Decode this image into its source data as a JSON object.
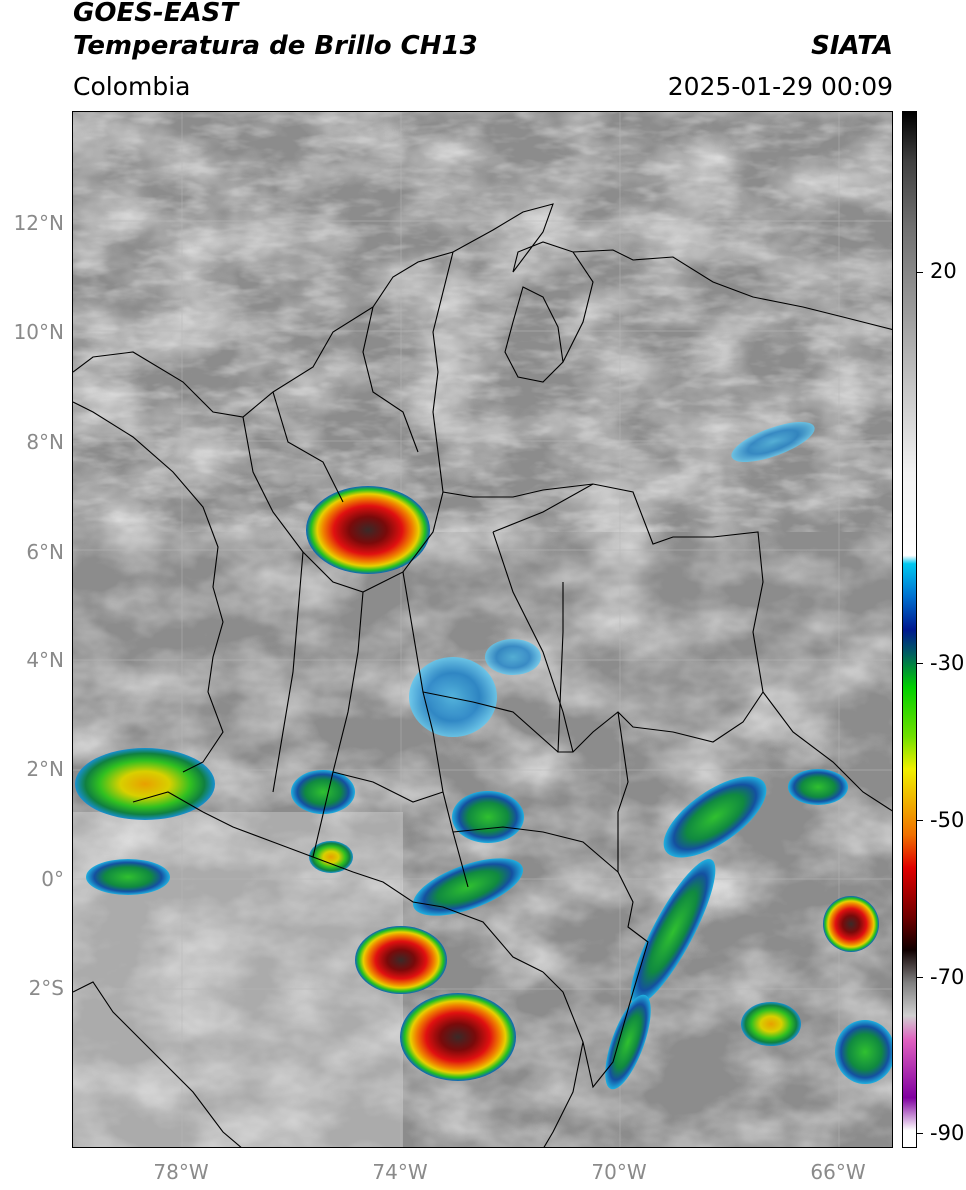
{
  "header": {
    "title_line1": "GOES-EAST",
    "title_line2": "Temperatura de Brillo CH13",
    "region": "Colombia",
    "source": "SIATA",
    "timestamp": "2025-01-29 00:09"
  },
  "map": {
    "lat_range": [
      -4.9,
      14.0
    ],
    "lon_range": [
      -80.0,
      -65.0
    ],
    "y_ticks": [
      {
        "label": "12°N",
        "lat": 12
      },
      {
        "label": "10°N",
        "lat": 10
      },
      {
        "label": "8°N",
        "lat": 8
      },
      {
        "label": "6°N",
        "lat": 6
      },
      {
        "label": "4°N",
        "lat": 4
      },
      {
        "label": "2°N",
        "lat": 2
      },
      {
        "label": "0°",
        "lat": 0
      },
      {
        "label": "2°S",
        "lat": -2
      }
    ],
    "x_ticks": [
      {
        "label": "78°W",
        "lon": -78
      },
      {
        "label": "74°W",
        "lon": -74
      },
      {
        "label": "70°W",
        "lon": -70
      },
      {
        "label": "66°W",
        "lon": -66
      }
    ]
  },
  "colorbar": {
    "range": [
      -92,
      34
    ],
    "ticks": [
      {
        "label": "20",
        "value": 20
      },
      {
        "label": "-30",
        "value": -30
      },
      {
        "label": "-50",
        "value": -50
      },
      {
        "label": "-70",
        "value": -70
      },
      {
        "label": "-90",
        "value": -90
      }
    ]
  }
}
